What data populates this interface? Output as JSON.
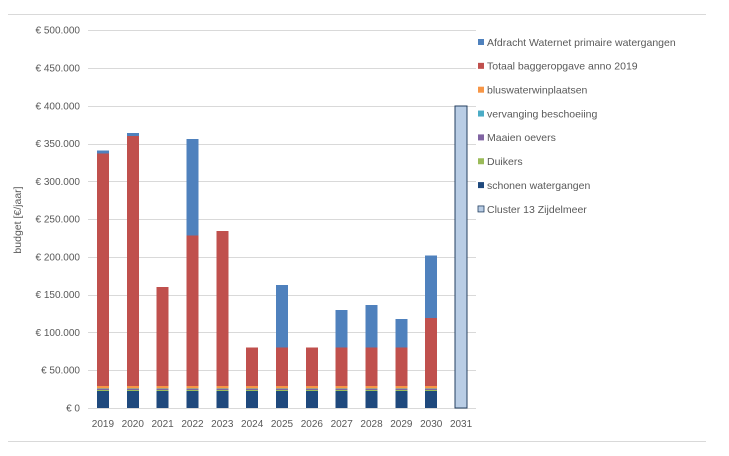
{
  "chart_data": {
    "type": "bar",
    "stacked": true,
    "ylabel": "budget [€/jaar]",
    "ylim": [
      0,
      500000
    ],
    "yticks": [
      0,
      50000,
      100000,
      150000,
      200000,
      250000,
      300000,
      350000,
      400000,
      450000,
      500000
    ],
    "ytick_labels": [
      "€ 0",
      "€ 50.000",
      "€ 100.000",
      "€ 150.000",
      "€ 200.000",
      "€ 250.000",
      "€ 300.000",
      "€ 350.000",
      "€ 400.000",
      "€ 450.000",
      "€ 500.000"
    ],
    "grid": true,
    "legend": "right",
    "categories": [
      "2019",
      "2020",
      "2021",
      "2022",
      "2023",
      "2024",
      "2025",
      "2026",
      "2027",
      "2028",
      "2029",
      "2030",
      "2031"
    ],
    "series": [
      {
        "name": "Cluster 13 Zijdelmeer",
        "color": "#b9cde5",
        "stroke": "#243f60",
        "values": [
          0,
          0,
          0,
          0,
          0,
          0,
          0,
          0,
          0,
          0,
          0,
          0,
          400000
        ]
      },
      {
        "name": "schonen watergangen",
        "color": "#1f497d",
        "values": [
          22500,
          22500,
          22500,
          22500,
          22500,
          22500,
          22500,
          22500,
          22500,
          22500,
          22500,
          22500,
          0
        ]
      },
      {
        "name": "Duikers",
        "color": "#9bbb59",
        "values": [
          1500,
          1500,
          1500,
          1500,
          1500,
          1500,
          1500,
          1500,
          1500,
          1500,
          1500,
          1500,
          0
        ]
      },
      {
        "name": "Maaien oevers",
        "color": "#8064a2",
        "values": [
          1000,
          1000,
          1000,
          1000,
          1000,
          1000,
          1000,
          1000,
          1000,
          1000,
          1000,
          1000,
          0
        ]
      },
      {
        "name": "vervanging beschoeiing",
        "color": "#4bacc6",
        "values": [
          1000,
          1000,
          1000,
          1000,
          1000,
          1000,
          1000,
          1000,
          1000,
          1000,
          1000,
          1000,
          0
        ]
      },
      {
        "name": "bluswaterwinplaatsen",
        "color": "#f79646",
        "values": [
          3000,
          3000,
          3000,
          3000,
          3000,
          3000,
          3000,
          3000,
          3000,
          3000,
          3000,
          3000,
          0
        ]
      },
      {
        "name": "Totaal baggeropgave anno 2019",
        "color": "#c0504d",
        "values": [
          308000,
          331000,
          131000,
          199000,
          205000,
          51000,
          51000,
          51000,
          51000,
          51000,
          51000,
          90000,
          0
        ]
      },
      {
        "name": "Afdracht Waternet primaire watergangen",
        "color": "#4f81bd",
        "values": [
          4000,
          4000,
          0,
          128000,
          0,
          0,
          83000,
          0,
          50000,
          56000,
          38000,
          83000,
          0
        ]
      }
    ]
  }
}
